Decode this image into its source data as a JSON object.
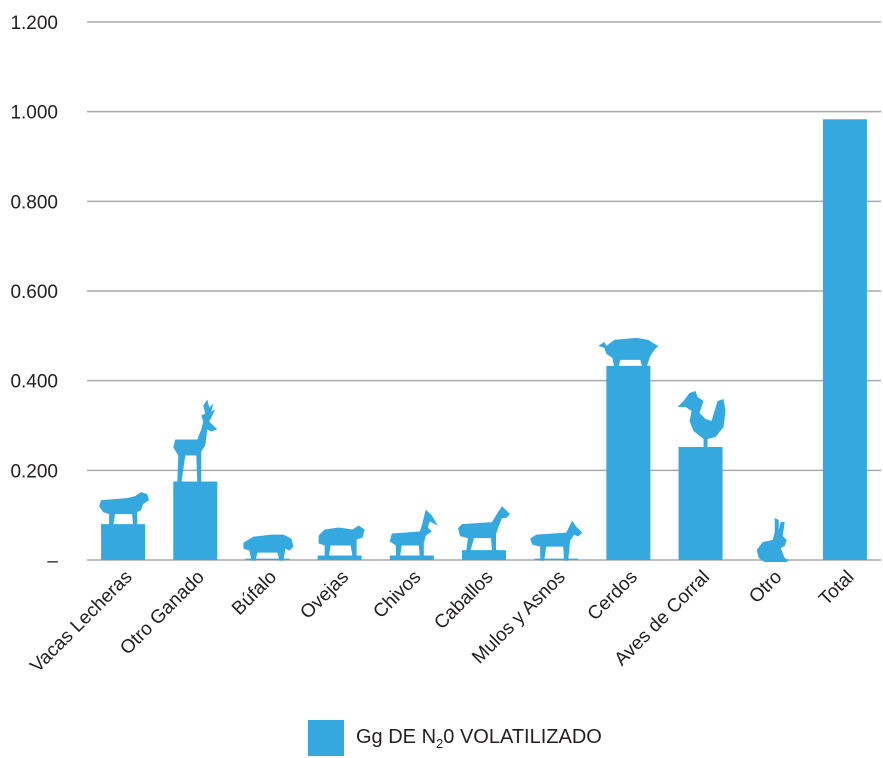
{
  "chart_data": {
    "type": "bar",
    "categories": [
      "Vacas Lecheras",
      "Otro Ganado",
      "Búfalo",
      "Ovejas",
      "Chivos",
      "Caballos",
      "Mulos y Asnos",
      "Cerdos",
      "Aves de Corral",
      "Otro",
      "Total"
    ],
    "values": [
      0.08,
      0.175,
      0.003,
      0.01,
      0.01,
      0.022,
      0.003,
      0.433,
      0.252,
      0.0,
      0.983
    ],
    "ylim": [
      0,
      1.2
    ],
    "ytick_values": [
      0,
      0.2,
      0.4,
      0.6,
      0.8,
      1.0,
      1.2
    ],
    "ytick_labels": [
      "–",
      "0.200",
      "0.400",
      "0.600",
      "0.800",
      "1.000",
      "1.200"
    ],
    "grid": true,
    "legend_position": "bottom-center",
    "series": [
      {
        "name": "Gg DE N20 VOLATILIZADO",
        "values": [
          0.08,
          0.175,
          0.003,
          0.01,
          0.01,
          0.022,
          0.003,
          0.433,
          0.252,
          0.0,
          0.983
        ]
      }
    ],
    "bar_color": "#35a8e0",
    "grid_color": "#a7a9ac",
    "icons": [
      "cow-icon",
      "deer-icon",
      "buffalo-icon",
      "sheep-icon",
      "goat-icon",
      "horse-icon",
      "donkey-icon",
      "pig-icon",
      "rooster-icon",
      "rabbit-icon",
      null
    ]
  },
  "legend": {
    "prefix": "Gg DE N",
    "subscript": "2",
    "suffix": "0 VOLATILIZADO"
  }
}
